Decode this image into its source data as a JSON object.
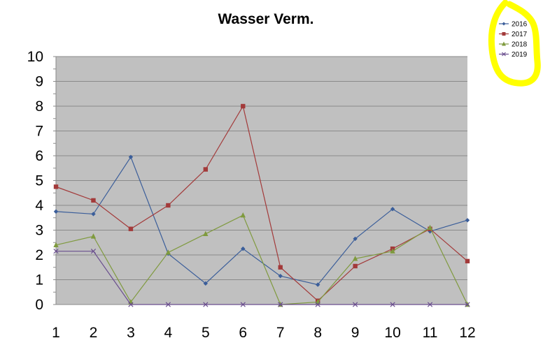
{
  "chart_data": {
    "type": "line",
    "title": "Wasser Verm.",
    "x": [
      1,
      2,
      3,
      4,
      5,
      6,
      7,
      8,
      9,
      10,
      11,
      12
    ],
    "ylim": [
      0,
      10
    ],
    "yticks": [
      0,
      1,
      2,
      3,
      4,
      5,
      6,
      7,
      8,
      9,
      10
    ],
    "grid": true,
    "legend_position": "top-right",
    "series": [
      {
        "name": "2016",
        "color": "#3B5E9A",
        "marker": "diamond",
        "values": [
          3.75,
          3.65,
          5.95,
          2.05,
          0.85,
          2.25,
          1.15,
          0.8,
          2.65,
          3.85,
          2.95,
          3.4
        ]
      },
      {
        "name": "2017",
        "color": "#A33A3A",
        "marker": "square",
        "values": [
          4.75,
          4.2,
          3.05,
          4.0,
          5.45,
          8.0,
          1.5,
          0.15,
          1.55,
          2.25,
          3.05,
          1.75
        ]
      },
      {
        "name": "2018",
        "color": "#7F9A3E",
        "marker": "triangle",
        "values": [
          2.4,
          2.75,
          0.1,
          2.1,
          2.85,
          3.6,
          0.0,
          0.1,
          1.85,
          2.15,
          3.1,
          0.0
        ]
      },
      {
        "name": "2019",
        "color": "#6A4E8E",
        "marker": "x",
        "values": [
          2.15,
          2.15,
          0.0,
          0.0,
          0.0,
          0.0,
          0.0,
          0.0,
          0.0,
          0.0,
          0.0,
          0.0
        ]
      }
    ]
  },
  "highlight_color": "#FFFF00",
  "plot_background": "#C0C0C0"
}
